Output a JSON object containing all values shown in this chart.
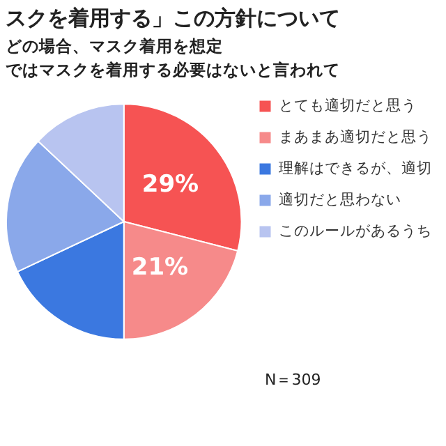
{
  "chart_data": {
    "type": "pie",
    "title": "スクを着用する」この方針について",
    "subtitle": "どの場合、マスク着用を想定",
    "categories": [
      "とても適切だと思う",
      "まあまあ適切だと思う",
      "理解はできるが、適切",
      "適切だと思わない",
      "このルールがあるうち"
    ],
    "values": [
      29,
      21,
      18,
      19,
      13
    ],
    "colors": [
      "#f65353",
      "#f68a8a",
      "#3b78e0",
      "#8aa8ea",
      "#b8c4f0"
    ],
    "value_labels": [
      "29%",
      "21%",
      null,
      null,
      null
    ],
    "legend": "right",
    "annotations": [
      "ではマスクを着用する必要はないと言われて",
      "N＝309"
    ]
  }
}
